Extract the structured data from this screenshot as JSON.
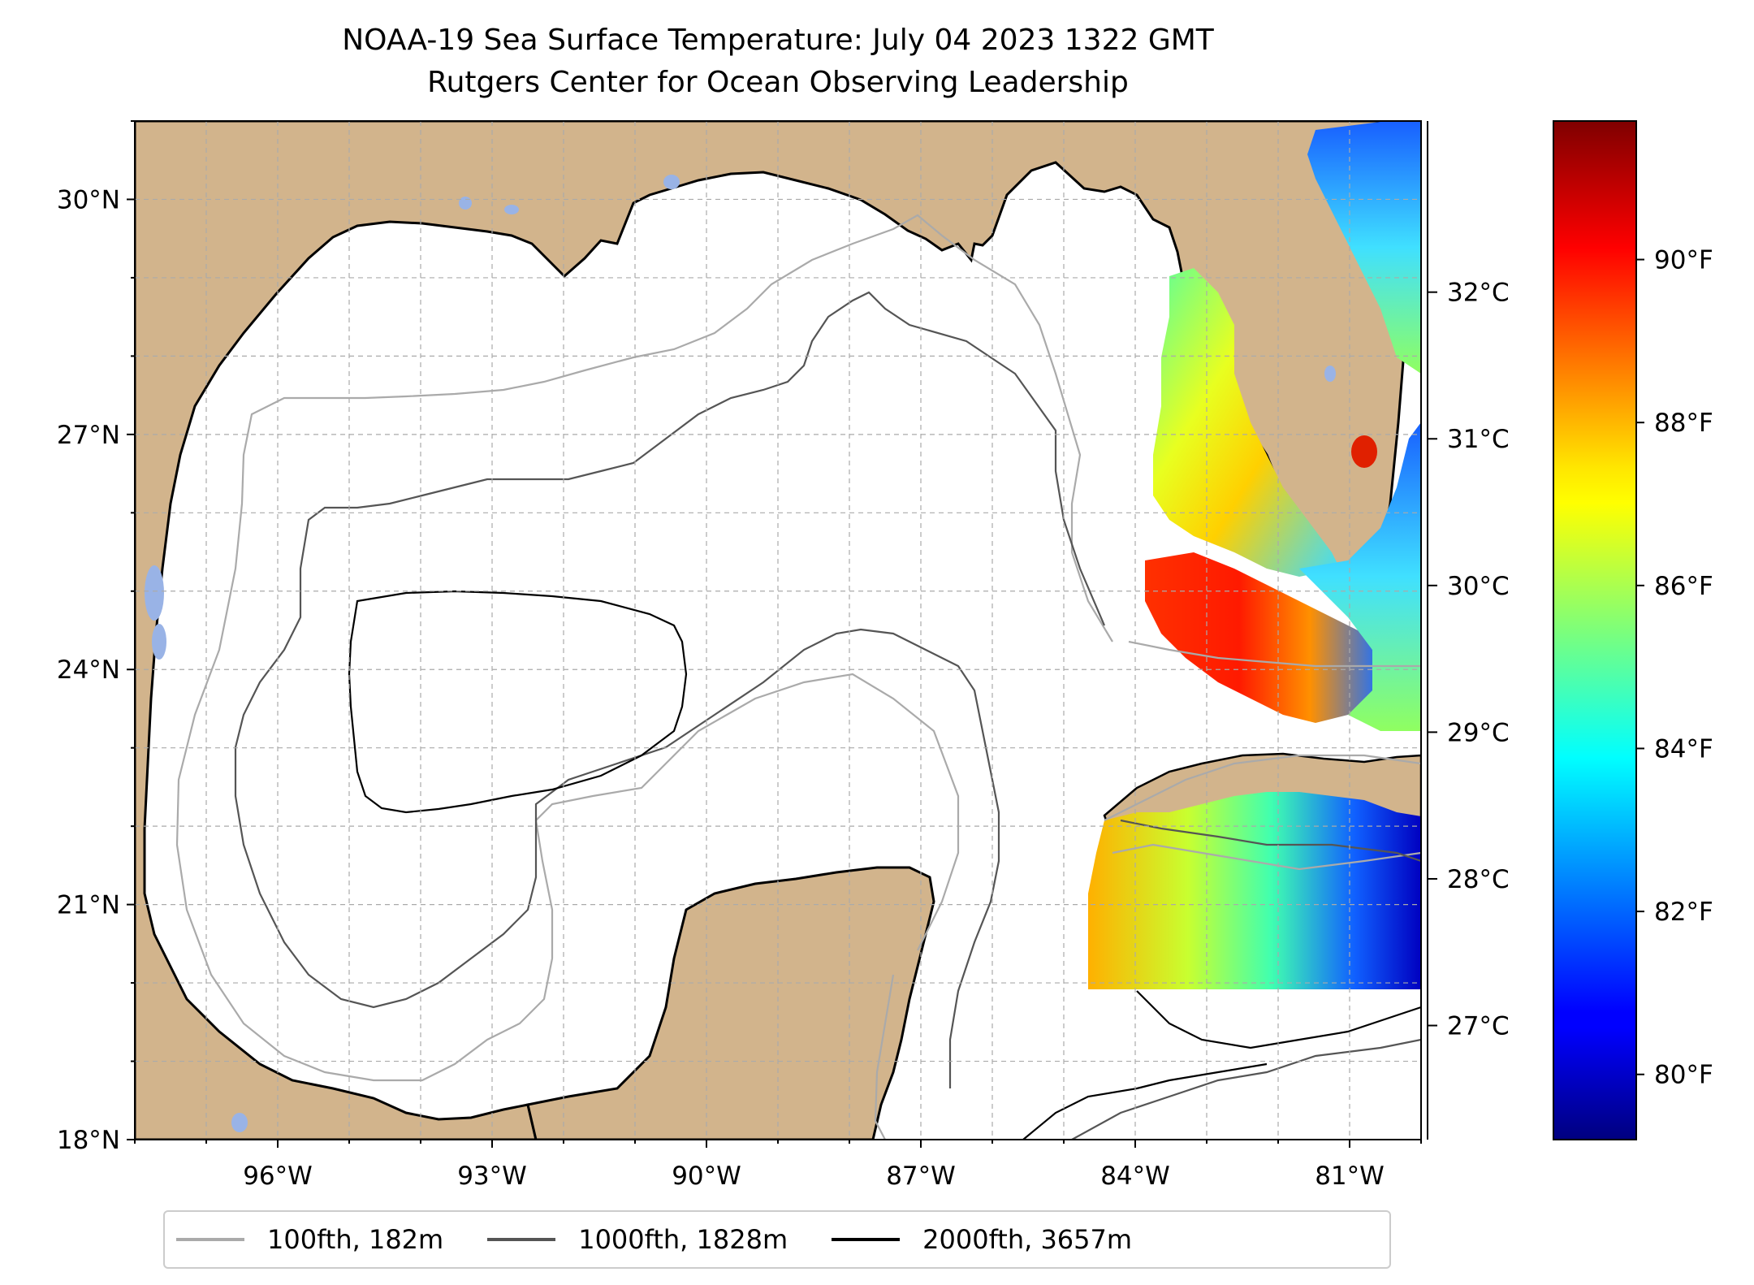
{
  "title": {
    "line1": "NOAA-19 Sea Surface Temperature: July 04 2023 1322 GMT",
    "line2": "Rutgers Center for Ocean Observing Leadership"
  },
  "map": {
    "region": "Gulf of Mexico",
    "lon_range": [
      -98,
      -80
    ],
    "lat_range": [
      18,
      31
    ],
    "lat_ticks": [
      {
        "value": 30,
        "label": "30°N"
      },
      {
        "value": 27,
        "label": "27°N"
      },
      {
        "value": 24,
        "label": "24°N"
      },
      {
        "value": 21,
        "label": "21°N"
      },
      {
        "value": 18,
        "label": "18°N"
      }
    ],
    "lon_ticks": [
      {
        "value": -96,
        "label": "96°W"
      },
      {
        "value": -93,
        "label": "93°W"
      },
      {
        "value": -90,
        "label": "90°W"
      },
      {
        "value": -87,
        "label": "87°W"
      },
      {
        "value": -84,
        "label": "84°W"
      },
      {
        "value": -81,
        "label": "81°W"
      }
    ],
    "gridlines": true,
    "land_color": "#d2b48c",
    "lake_color": "#99b3e6",
    "ocean_color": "#ffffff"
  },
  "colorbar": {
    "colormap": "jet",
    "celsius_ticks": [
      {
        "value": 32,
        "label": "32°C"
      },
      {
        "value": 31,
        "label": "31°C"
      },
      {
        "value": 30,
        "label": "30°C"
      },
      {
        "value": 29,
        "label": "29°C"
      },
      {
        "value": 28,
        "label": "28°C"
      },
      {
        "value": 27,
        "label": "27°C"
      }
    ],
    "fahrenheit_ticks": [
      {
        "value": 90,
        "label": "90°F"
      },
      {
        "value": 88,
        "label": "88°F"
      },
      {
        "value": 86,
        "label": "86°F"
      },
      {
        "value": 84,
        "label": "84°F"
      },
      {
        "value": 82,
        "label": "82°F"
      },
      {
        "value": 80,
        "label": "80°F"
      }
    ]
  },
  "legend": {
    "items": [
      {
        "label": "100fth, 182m",
        "color": "#aaaaaa"
      },
      {
        "label": "1000fth, 1828m",
        "color": "#555555"
      },
      {
        "label": "2000fth, 3657m",
        "color": "#000000"
      }
    ]
  }
}
